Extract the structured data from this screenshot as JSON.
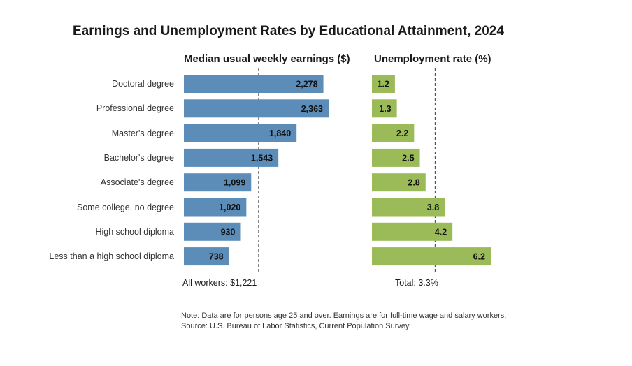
{
  "chart_data": [
    {
      "type": "bar",
      "orientation": "horizontal",
      "title": "Earnings and Unemployment Rates by Educational Attainment, 2024",
      "subtitle": "Median usual weekly earnings ($)",
      "categories": [
        "Doctoral degree",
        "Professional degree",
        "Master's degree",
        "Bachelor's degree",
        "Associate's degree",
        "Some college, no degree",
        "High school diploma",
        "Less than a high school diploma"
      ],
      "values": [
        2278,
        2363,
        1840,
        1543,
        1099,
        1020,
        930,
        738
      ],
      "value_labels": [
        "2,278",
        "2,363",
        "1,840",
        "1,543",
        "1,099",
        "1,020",
        "930",
        "738"
      ],
      "reference_value": 1221,
      "reference_label": "All workers: $1,221",
      "xlim": [
        0,
        2363
      ],
      "color": "#5b8db8"
    },
    {
      "type": "bar",
      "orientation": "horizontal",
      "subtitle": "Unemployment rate (%)",
      "categories": [
        "Doctoral degree",
        "Professional degree",
        "Master's degree",
        "Bachelor's degree",
        "Associate's degree",
        "Some college, no degree",
        "High school diploma",
        "Less than a high school diploma"
      ],
      "values": [
        1.2,
        1.3,
        2.2,
        2.5,
        2.8,
        3.8,
        4.2,
        6.2
      ],
      "value_labels": [
        "1.2",
        "1.3",
        "2.2",
        "2.5",
        "2.8",
        "3.8",
        "4.2",
        "6.2"
      ],
      "reference_value": 3.3,
      "reference_label": "Total: 3.3%",
      "xlim": [
        0,
        6.2
      ],
      "color": "#9bbb59"
    }
  ],
  "notes": [
    "Note: Data are for persons age 25 and over. Earnings are for full-time wage and salary workers.",
    "Source: U.S. Bureau of Labor Statistics, Current Population Survey."
  ]
}
